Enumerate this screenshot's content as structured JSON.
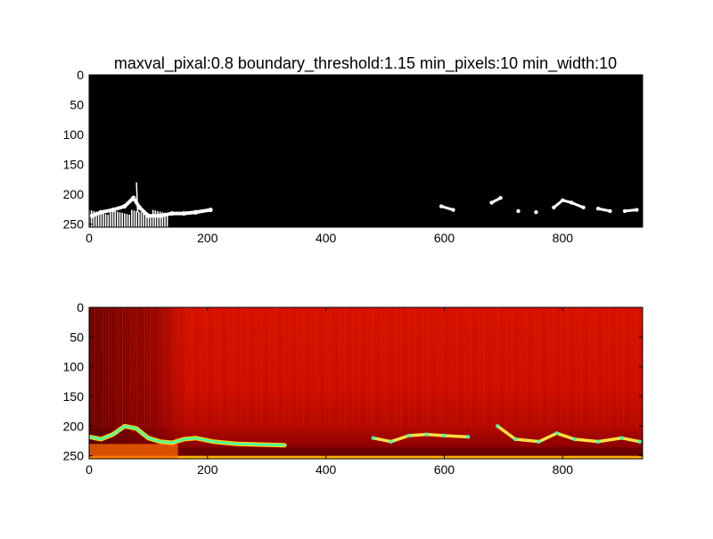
{
  "chart_data": [
    {
      "type": "heatmap",
      "title": "maxval_pixal:0.8 boundary_threshold:1.15 min_pixels:10 min_width:10",
      "xlim": [
        0,
        935
      ],
      "ylim": [
        0,
        255
      ],
      "y_inverted": true,
      "xticks": [
        0,
        200,
        400,
        600,
        800
      ],
      "yticks": [
        0,
        50,
        100,
        150,
        200,
        250
      ],
      "colormap": "gray (binary mask)",
      "background_color": "#000000",
      "foreground_color": "#ffffff",
      "description_note": "binary segmentation mask",
      "series": [
        {
          "points": [
            [
              5,
              236
            ],
            [
              20,
              230
            ],
            [
              40,
              226
            ],
            [
              60,
              220
            ],
            [
              75,
              206
            ],
            [
              85,
              222
            ],
            [
              100,
              236
            ],
            [
              120,
              236
            ],
            [
              140,
              232
            ],
            [
              160,
              232
            ],
            [
              180,
              230
            ],
            [
              205,
              226
            ]
          ]
        },
        {
          "points": [
            [
              595,
              220
            ],
            [
              615,
              226
            ],
            [
              680,
              214
            ],
            [
              695,
              206
            ],
            [
              725,
              228
            ],
            [
              755,
              230
            ],
            [
              785,
              222
            ],
            [
              800,
              210
            ],
            [
              815,
              214
            ],
            [
              835,
              222
            ],
            [
              860,
              224
            ],
            [
              880,
              228
            ],
            [
              905,
              228
            ],
            [
              925,
              226
            ]
          ]
        }
      ]
    },
    {
      "type": "heatmap",
      "title": "",
      "xlim": [
        0,
        935
      ],
      "ylim": [
        0,
        255
      ],
      "y_inverted": true,
      "xticks": [
        0,
        200,
        400,
        600,
        800
      ],
      "yticks": [
        0,
        50,
        100,
        150,
        200,
        250
      ],
      "colormap": "jet",
      "background_color": "#d01000",
      "dark_region_x": [
        0,
        155
      ],
      "series": [
        {
          "points": [
            [
              0,
              218
            ],
            [
              20,
              222
            ],
            [
              40,
              214
            ],
            [
              60,
              200
            ],
            [
              80,
              204
            ],
            [
              100,
              220
            ],
            [
              120,
              226
            ],
            [
              140,
              228
            ],
            [
              160,
              222
            ],
            [
              180,
              220
            ],
            [
              210,
              226
            ],
            [
              250,
              230
            ],
            [
              330,
              232
            ]
          ]
        },
        {
          "points": [
            [
              480,
              220
            ],
            [
              510,
              226
            ],
            [
              540,
              216
            ],
            [
              570,
              214
            ],
            [
              600,
              216
            ],
            [
              640,
              218
            ],
            [
              690,
              200
            ],
            [
              720,
              222
            ],
            [
              760,
              226
            ],
            [
              790,
              212
            ],
            [
              820,
              222
            ],
            [
              860,
              226
            ],
            [
              900,
              220
            ],
            [
              930,
              226
            ]
          ]
        }
      ]
    }
  ]
}
